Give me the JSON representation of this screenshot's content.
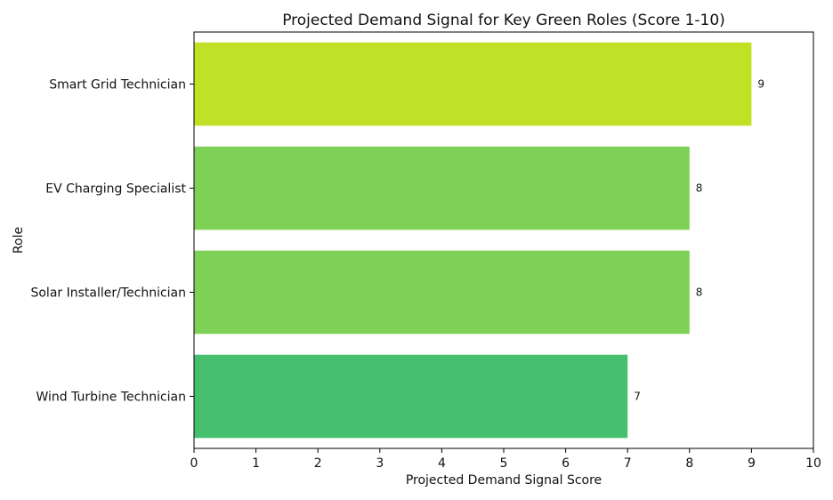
{
  "chart_data": {
    "type": "bar",
    "orientation": "horizontal",
    "title": "Projected Demand Signal for Key Green Roles (Score 1-10)",
    "xlabel": "Projected Demand Signal Score",
    "ylabel": "Role",
    "xlim": [
      0,
      10
    ],
    "x_ticks": [
      0,
      1,
      2,
      3,
      4,
      5,
      6,
      7,
      8,
      9,
      10
    ],
    "grid": false,
    "legend": "none",
    "categories": [
      "Smart Grid Technician",
      "EV Charging Specialist",
      "Solar Installer/Technician",
      "Wind Turbine Technician"
    ],
    "values": [
      9,
      8,
      8,
      7
    ],
    "data_labels": [
      "9",
      "8",
      "8",
      "7"
    ],
    "colors": [
      "#c0e126",
      "#7ed156",
      "#7ed156",
      "#46c06e"
    ]
  }
}
